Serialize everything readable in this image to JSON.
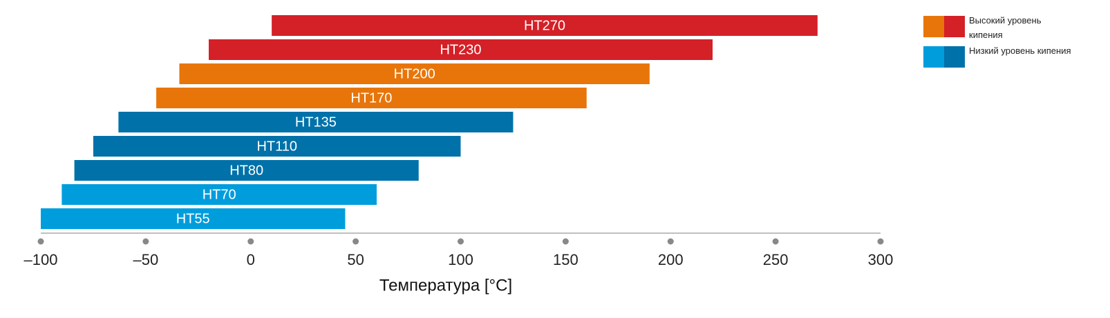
{
  "chart_data": {
    "type": "floating-bar",
    "categories": [
      "HT270",
      "HT230",
      "HT200",
      "HT170",
      "HT135",
      "HT110",
      "HT80",
      "HT70",
      "HT55"
    ],
    "starts": [
      10,
      -20,
      -34,
      -45,
      -63,
      -75,
      -84,
      -90,
      -100
    ],
    "ends": [
      270,
      220,
      190,
      160,
      125,
      100,
      80,
      60,
      45
    ],
    "colors": [
      "#d42027",
      "#d42027",
      "#e8750a",
      "#e8750a",
      "#0071a9",
      "#0071a9",
      "#0071a9",
      "#009ddd",
      "#009ddd"
    ],
    "xlim": [
      -100,
      300
    ],
    "xticks": [
      {
        "value": -100,
        "label": "–100"
      },
      {
        "value": -50,
        "label": "–50"
      },
      0,
      50,
      100,
      150,
      200,
      250,
      300
    ],
    "xlabel": "Температура [°C]",
    "legend_position": "upper right",
    "legend": [
      {
        "label": "Высокий уровень кипения",
        "colors": [
          "#e8750a",
          "#d42027"
        ]
      },
      {
        "label": "Низкий уровень кипения",
        "colors": [
          "#009ddd",
          "#0071a9"
        ]
      }
    ]
  }
}
